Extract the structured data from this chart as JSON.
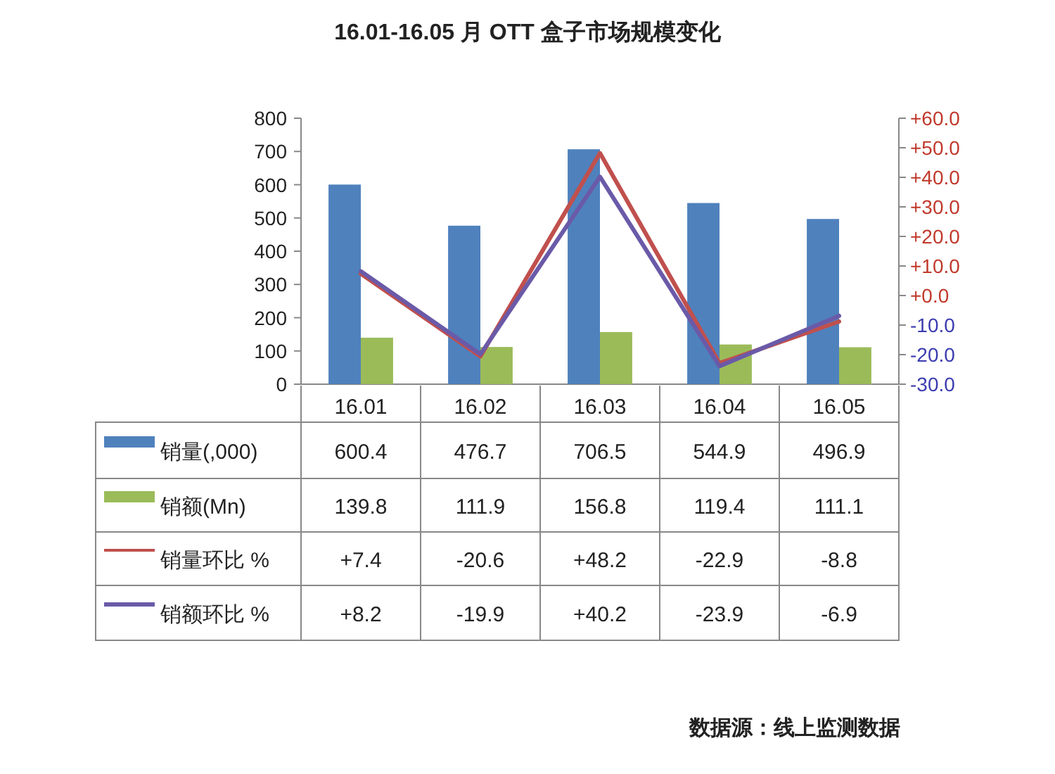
{
  "chart_data": {
    "type": "bar",
    "title": "16.01-16.05 月 OTT 盒子市场规模变化",
    "categories": [
      "16.01",
      "16.02",
      "16.03",
      "16.04",
      "16.05"
    ],
    "series": [
      {
        "name": "销量(,000)",
        "color": "#4f81bd",
        "values": [
          600.4,
          476.7,
          706.5,
          544.9,
          496.9
        ],
        "value_labels": [
          "600.4",
          "476.7",
          "706.5",
          "544.9",
          "496.9"
        ]
      },
      {
        "name": "销额(Mn)",
        "color": "#9bbb59",
        "values": [
          139.8,
          111.9,
          156.8,
          119.4,
          111.1
        ],
        "value_labels": [
          "139.8",
          "111.9",
          "156.8",
          "119.4",
          "111.1"
        ]
      },
      {
        "name": "销量环比 %",
        "type": "line",
        "axis": "y2",
        "color": "#c0504d",
        "values": [
          7.4,
          -20.6,
          48.2,
          -22.9,
          -8.8
        ],
        "value_labels": [
          "+7.4",
          "-20.6",
          "+48.2",
          "-22.9",
          "-8.8"
        ]
      },
      {
        "name": "销额环比 %",
        "type": "line",
        "axis": "y2",
        "color": "#6a5aa8",
        "values": [
          8.2,
          -19.9,
          40.2,
          -23.9,
          -6.9
        ],
        "value_labels": [
          "+8.2",
          "-19.9",
          "+40.2",
          "-23.9",
          "-6.9"
        ]
      }
    ],
    "ylim": [
      0,
      800
    ],
    "yticks": [
      0,
      100,
      200,
      300,
      400,
      500,
      600,
      700,
      800
    ],
    "y2lim": [
      -30,
      60
    ],
    "y2ticks": [
      {
        "value": -30,
        "label": "-30.0"
      },
      {
        "value": -20,
        "label": "-20.0"
      },
      {
        "value": -10,
        "label": "-10.0"
      },
      {
        "value": 0,
        "label": "+0.0"
      },
      {
        "value": 10,
        "label": "+10.0"
      },
      {
        "value": 20,
        "label": "+20.0"
      },
      {
        "value": 30,
        "label": "+30.0"
      },
      {
        "value": 40,
        "label": "+40.0"
      },
      {
        "value": 50,
        "label": "+50.0"
      },
      {
        "value": 60,
        "label": "+60.0"
      }
    ],
    "legend": "bottom left",
    "grid": false,
    "marker": "none",
    "line_style": "solid",
    "annotations": [
      "数据源：线上监测数据"
    ]
  }
}
